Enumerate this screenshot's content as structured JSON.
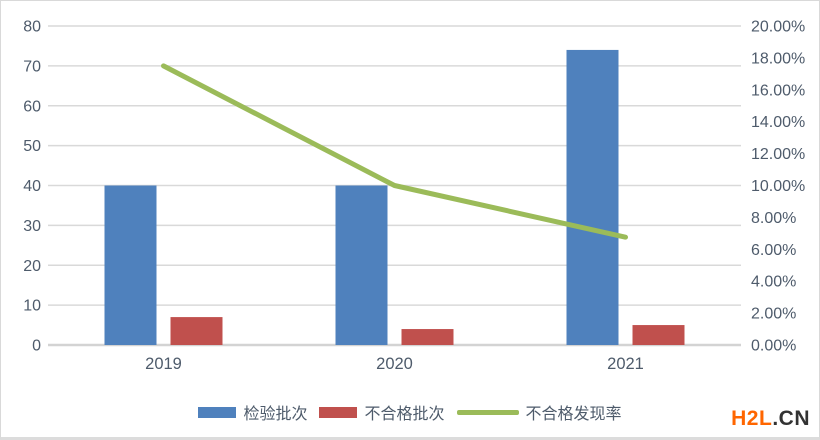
{
  "page": {
    "watermark": {
      "part1": "H2L",
      "part2": ".CN"
    }
  },
  "chart_data": {
    "type": "bar",
    "subtype": "combo-bar-line",
    "title": "",
    "categories": [
      "2019",
      "2020",
      "2021"
    ],
    "series": [
      {
        "name": "检验批次",
        "type": "bar",
        "axis": "left",
        "color": "#4F81BD",
        "values": [
          40,
          40,
          74
        ]
      },
      {
        "name": "不合格批次",
        "type": "bar",
        "axis": "left",
        "color": "#C0504D",
        "values": [
          7,
          4,
          5
        ]
      },
      {
        "name": "不合格发现率",
        "type": "line",
        "axis": "right",
        "color": "#9BBB59",
        "values_percent": [
          17.5,
          10.0,
          6.76
        ]
      }
    ],
    "left_axis": {
      "min": 0,
      "max": 80,
      "step": 10,
      "tick_labels": [
        "0",
        "10",
        "20",
        "30",
        "40",
        "50",
        "60",
        "70",
        "80"
      ]
    },
    "right_axis": {
      "min": 0,
      "max": 20,
      "step": 2,
      "tick_labels": [
        "0.00%",
        "2.00%",
        "4.00%",
        "6.00%",
        "8.00%",
        "10.00%",
        "12.00%",
        "14.00%",
        "16.00%",
        "18.00%",
        "20.00%"
      ]
    },
    "grid": true,
    "gridline_color": "#d9d9d9",
    "axis_line_color": "#d3d3d3",
    "tick_label_color": "#4e5b6b",
    "legend_position": "bottom"
  }
}
